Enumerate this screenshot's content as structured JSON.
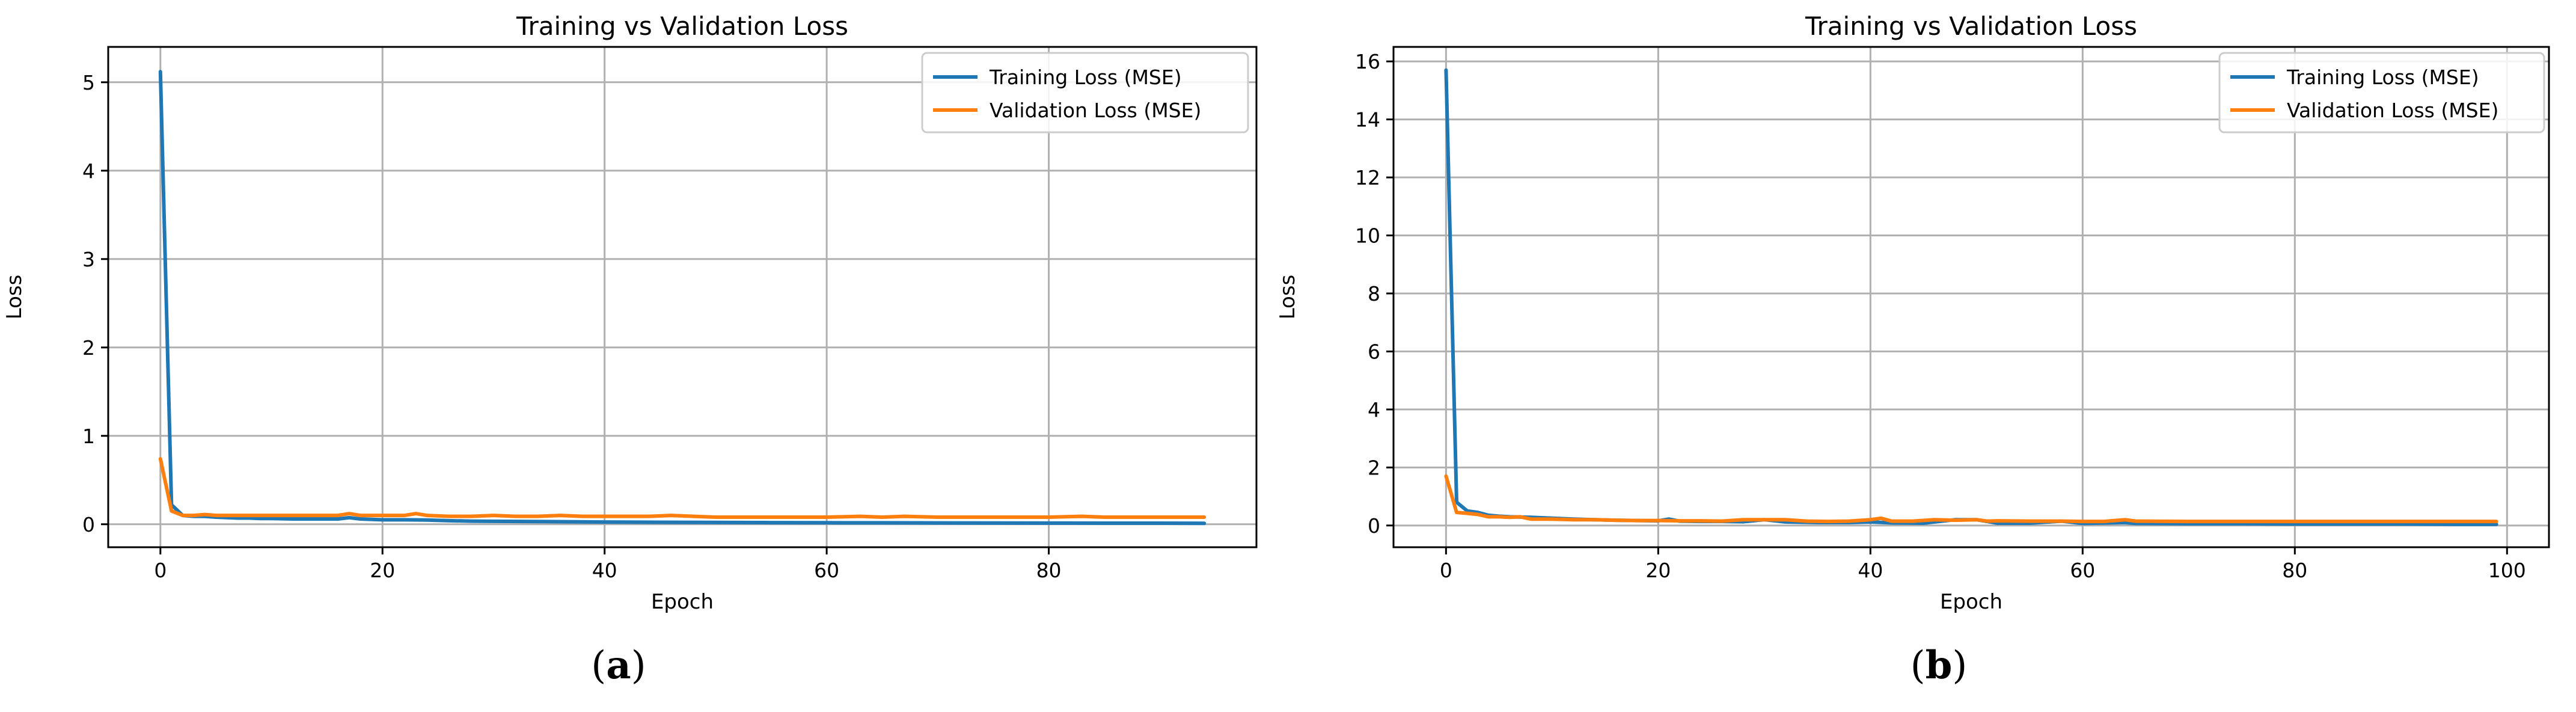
{
  "colors": {
    "training": "#1f77b4",
    "validation": "#ff7f0e"
  },
  "panels": [
    {
      "label_open": "(",
      "label_letter": "a",
      "label_close": ")"
    },
    {
      "label_open": "(",
      "label_letter": "b",
      "label_close": ")"
    }
  ],
  "chart_data": [
    {
      "type": "line",
      "title": "Training vs Validation Loss",
      "xlabel": "Epoch",
      "ylabel": "Loss",
      "xlim": [
        -4.7,
        98.7
      ],
      "ylim": [
        -0.26,
        5.4
      ],
      "xticks": [
        0,
        20,
        40,
        60,
        80
      ],
      "yticks": [
        0,
        1,
        2,
        3,
        4,
        5
      ],
      "grid": true,
      "legend_position": "top-right",
      "series": [
        {
          "name": "Training Loss (MSE)",
          "color": "#1f77b4",
          "x": [
            0,
            1,
            2,
            3,
            4,
            5,
            6,
            7,
            8,
            9,
            10,
            12,
            14,
            16,
            17,
            18,
            20,
            22,
            24,
            26,
            28,
            30,
            35,
            40,
            45,
            50,
            55,
            60,
            65,
            70,
            75,
            80,
            85,
            90,
            94
          ],
          "y": [
            5.12,
            0.22,
            0.1,
            0.09,
            0.09,
            0.08,
            0.075,
            0.07,
            0.07,
            0.065,
            0.065,
            0.06,
            0.06,
            0.06,
            0.075,
            0.06,
            0.05,
            0.05,
            0.048,
            0.04,
            0.035,
            0.033,
            0.03,
            0.025,
            0.022,
            0.02,
            0.018,
            0.017,
            0.016,
            0.015,
            0.014,
            0.013,
            0.012,
            0.012,
            0.011
          ]
        },
        {
          "name": "Validation Loss (MSE)",
          "color": "#ff7f0e",
          "x": [
            0,
            1,
            2,
            3,
            4,
            5,
            6,
            8,
            10,
            12,
            14,
            16,
            17,
            18,
            19,
            20,
            21,
            22,
            23,
            24,
            26,
            28,
            30,
            32,
            34,
            36,
            38,
            40,
            42,
            44,
            46,
            48,
            50,
            55,
            60,
            63,
            65,
            67,
            70,
            75,
            80,
            83,
            85,
            90,
            94
          ],
          "y": [
            0.74,
            0.15,
            0.1,
            0.1,
            0.11,
            0.1,
            0.1,
            0.1,
            0.1,
            0.1,
            0.1,
            0.1,
            0.12,
            0.1,
            0.1,
            0.1,
            0.1,
            0.1,
            0.12,
            0.1,
            0.09,
            0.09,
            0.1,
            0.09,
            0.09,
            0.1,
            0.09,
            0.09,
            0.09,
            0.09,
            0.1,
            0.09,
            0.08,
            0.08,
            0.08,
            0.09,
            0.08,
            0.09,
            0.08,
            0.08,
            0.08,
            0.09,
            0.08,
            0.08,
            0.08
          ]
        }
      ]
    },
    {
      "type": "line",
      "title": "Training vs Validation Loss",
      "xlabel": "Epoch",
      "ylabel": "Loss",
      "xlim": [
        -4.95,
        103.95
      ],
      "ylim": [
        -0.75,
        16.5
      ],
      "xticks": [
        0,
        20,
        40,
        60,
        80,
        100
      ],
      "yticks": [
        0,
        2,
        4,
        6,
        8,
        10,
        12,
        14,
        16
      ],
      "grid": true,
      "legend_position": "top-right",
      "series": [
        {
          "name": "Training Loss (MSE)",
          "color": "#1f77b4",
          "x": [
            0,
            1,
            2,
            3,
            4,
            5,
            6,
            8,
            10,
            12,
            14,
            16,
            18,
            20,
            21,
            22,
            24,
            26,
            28,
            30,
            32,
            35,
            38,
            40,
            42,
            45,
            48,
            50,
            52,
            55,
            58,
            60,
            64,
            65,
            70,
            75,
            80,
            85,
            90,
            95,
            99
          ],
          "y": [
            15.7,
            0.8,
            0.5,
            0.45,
            0.35,
            0.32,
            0.3,
            0.28,
            0.25,
            0.22,
            0.2,
            0.18,
            0.17,
            0.16,
            0.22,
            0.15,
            0.14,
            0.14,
            0.13,
            0.2,
            0.12,
            0.1,
            0.1,
            0.12,
            0.09,
            0.08,
            0.2,
            0.2,
            0.08,
            0.08,
            0.15,
            0.07,
            0.1,
            0.07,
            0.06,
            0.06,
            0.05,
            0.05,
            0.05,
            0.04,
            0.04
          ]
        },
        {
          "name": "Validation Loss (MSE)",
          "color": "#ff7f0e",
          "x": [
            0,
            1,
            2,
            3,
            4,
            5,
            6,
            7,
            8,
            10,
            12,
            14,
            16,
            18,
            20,
            22,
            24,
            26,
            28,
            30,
            32,
            34,
            36,
            38,
            40,
            41,
            42,
            44,
            46,
            48,
            50,
            51,
            52,
            55,
            58,
            60,
            62,
            64,
            65,
            70,
            75,
            80,
            85,
            90,
            95,
            99
          ],
          "y": [
            1.7,
            0.45,
            0.42,
            0.38,
            0.3,
            0.3,
            0.28,
            0.3,
            0.22,
            0.22,
            0.2,
            0.2,
            0.18,
            0.17,
            0.17,
            0.16,
            0.16,
            0.15,
            0.2,
            0.2,
            0.2,
            0.15,
            0.14,
            0.15,
            0.2,
            0.25,
            0.15,
            0.15,
            0.2,
            0.18,
            0.2,
            0.15,
            0.16,
            0.15,
            0.15,
            0.14,
            0.14,
            0.2,
            0.15,
            0.14,
            0.14,
            0.14,
            0.14,
            0.14,
            0.14,
            0.14
          ]
        }
      ]
    }
  ]
}
